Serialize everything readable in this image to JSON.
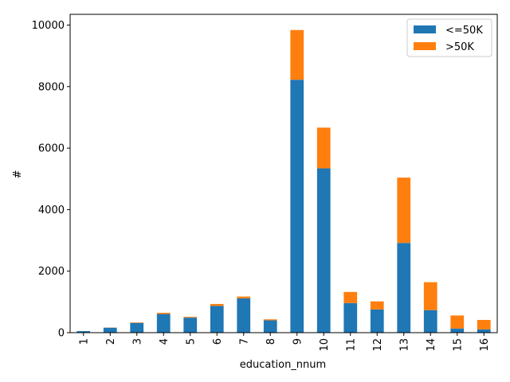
{
  "chart_data": {
    "type": "bar",
    "stacked": true,
    "title": "",
    "xlabel": "education_nnum",
    "ylabel": "#",
    "ylim": [
      0,
      10350
    ],
    "yticks": [
      0,
      2000,
      4000,
      6000,
      8000,
      10000
    ],
    "grid": false,
    "legend_position": "top-right",
    "categories": [
      "1",
      "2",
      "3",
      "4",
      "5",
      "6",
      "7",
      "8",
      "9",
      "10",
      "11",
      "12",
      "13",
      "14",
      "15",
      "16"
    ],
    "series": [
      {
        "name": "<=50K",
        "color": "#1f77b4",
        "values": [
          51,
          162,
          317,
          606,
          487,
          871,
          1115,
          400,
          8223,
          5342,
          963,
          753,
          2918,
          733,
          136,
          107
        ]
      },
      {
        "name": ">50K",
        "color": "#ff7f0e",
        "values": [
          0,
          6,
          16,
          40,
          27,
          62,
          60,
          33,
          1617,
          1324,
          361,
          264,
          2123,
          908,
          423,
          307
        ]
      }
    ]
  }
}
